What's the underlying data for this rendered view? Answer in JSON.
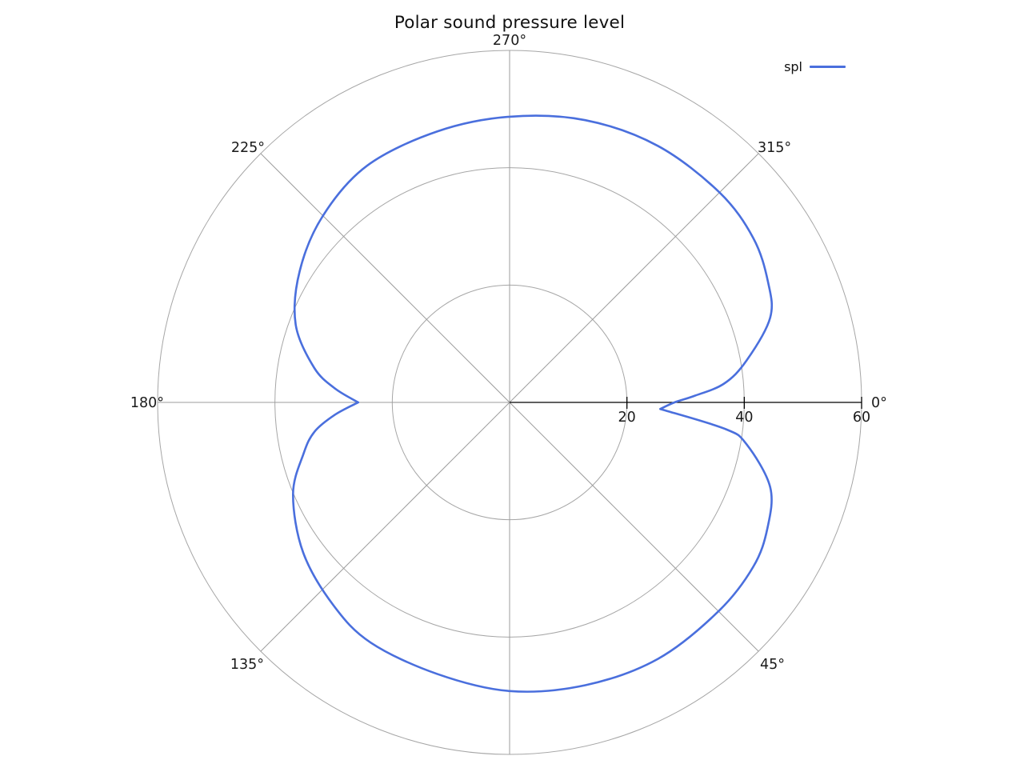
{
  "chart_data": {
    "type": "line",
    "coordinate": "polar",
    "title": "Polar sound pressure level",
    "angular_unit": "degrees",
    "angular_direction": "clockwise",
    "angular_zero_position": "right",
    "angular_gridlines": [
      0,
      45,
      90,
      135,
      180,
      225,
      270,
      315
    ],
    "angular_ticks": [
      {
        "angle": 0,
        "label": "0°"
      },
      {
        "angle": 45,
        "label": "45°"
      },
      {
        "angle": 135,
        "label": "135°"
      },
      {
        "angle": 180,
        "label": "180°"
      },
      {
        "angle": 225,
        "label": "225°"
      },
      {
        "angle": 270,
        "label": "270°"
      },
      {
        "angle": 315,
        "label": "315°"
      }
    ],
    "radial_axis_angle": 0,
    "radial_ticks": [
      20,
      40,
      60
    ],
    "rlim": [
      0,
      60
    ],
    "grid": true,
    "legend_position": "top-right",
    "series": [
      {
        "name": "spl",
        "color": "#4a6fdd",
        "points": [
          [
            0,
            28.1
          ],
          [
            2.5,
            25.7
          ],
          [
            7,
            37.0
          ],
          [
            10,
            41.0
          ],
          [
            18,
            46.7
          ],
          [
            26,
            48.9
          ],
          [
            34,
            50.1
          ],
          [
            45,
            50.35
          ],
          [
            60,
            50.5
          ],
          [
            75,
            49.9
          ],
          [
            90,
            49.2
          ],
          [
            105,
            47.9
          ],
          [
            120,
            47.3
          ],
          [
            131,
            45.8
          ],
          [
            144,
            43.5
          ],
          [
            157,
            40.1
          ],
          [
            166,
            36.2
          ],
          [
            171.5,
            33.6
          ],
          [
            176,
            29.8
          ],
          [
            180,
            25.8
          ],
          [
            184.5,
            29.8
          ],
          [
            190,
            33.8
          ],
          [
            200,
            38.8
          ],
          [
            212,
            42.2
          ],
          [
            225,
            45.0
          ],
          [
            239,
            47.1
          ],
          [
            255,
            47.8
          ],
          [
            270,
            48.7
          ],
          [
            285,
            49.8
          ],
          [
            300,
            50.5
          ],
          [
            315,
            50.6
          ],
          [
            326,
            50.1
          ],
          [
            335,
            48.6
          ],
          [
            342,
            46.7
          ],
          [
            350,
            41.0
          ],
          [
            355,
            36.7
          ],
          [
            358,
            31.5
          ]
        ],
        "cusp_angles": [
          2.5,
          180
        ]
      }
    ],
    "colors": {
      "grid": "#a6a6a6",
      "axis": "#000000",
      "text": "#1a1a1a",
      "background": "#ffffff"
    }
  }
}
